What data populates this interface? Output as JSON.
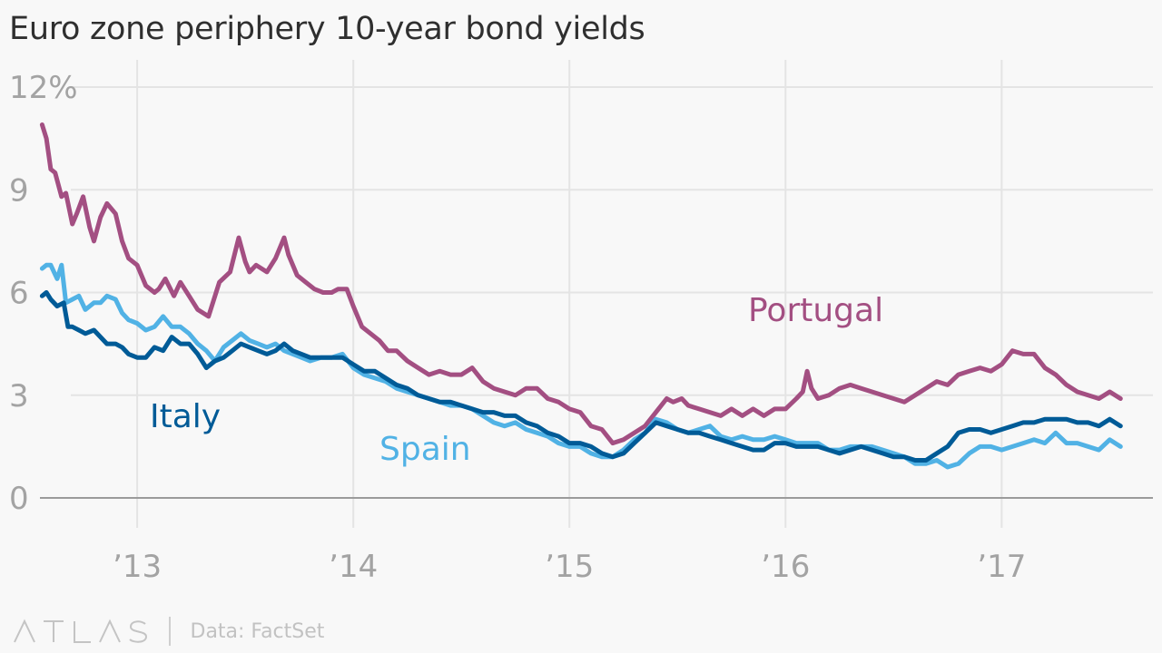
{
  "chart_data": {
    "type": "line",
    "title": "Euro zone periphery 10-year bond yields",
    "xlabel": "",
    "ylabel": "",
    "ylim": [
      0,
      12
    ],
    "yticks": [
      0,
      3,
      6,
      9,
      12
    ],
    "ytick_labels": [
      "0",
      "3",
      "6",
      "9",
      "12%"
    ],
    "xlim": [
      2012.55,
      2017.7
    ],
    "xticks": [
      2013,
      2014,
      2015,
      2016,
      2017
    ],
    "xtick_labels": [
      "’13",
      "’14",
      "’15",
      "’16",
      "’17"
    ],
    "grid": true,
    "series": [
      {
        "name": "Portugal",
        "label": "Portugal",
        "color": "#a34f82",
        "x": [
          2012.56,
          2012.58,
          2012.6,
          2012.62,
          2012.65,
          2012.67,
          2012.7,
          2012.72,
          2012.75,
          2012.78,
          2012.8,
          2012.83,
          2012.86,
          2012.9,
          2012.93,
          2012.96,
          2013.0,
          2013.04,
          2013.08,
          2013.1,
          2013.13,
          2013.17,
          2013.2,
          2013.24,
          2013.28,
          2013.33,
          2013.38,
          2013.43,
          2013.47,
          2013.5,
          2013.52,
          2013.55,
          2013.6,
          2013.64,
          2013.68,
          2013.7,
          2013.74,
          2013.78,
          2013.82,
          2013.86,
          2013.9,
          2013.93,
          2013.97,
          2014.0,
          2014.04,
          2014.08,
          2014.12,
          2014.16,
          2014.2,
          2014.25,
          2014.3,
          2014.35,
          2014.4,
          2014.45,
          2014.5,
          2014.55,
          2014.6,
          2014.65,
          2014.7,
          2014.75,
          2014.8,
          2014.85,
          2014.9,
          2014.95,
          2015.0,
          2015.05,
          2015.1,
          2015.15,
          2015.2,
          2015.25,
          2015.3,
          2015.35,
          2015.4,
          2015.45,
          2015.48,
          2015.52,
          2015.55,
          2015.6,
          2015.65,
          2015.7,
          2015.75,
          2015.8,
          2015.85,
          2015.9,
          2015.95,
          2016.0,
          2016.05,
          2016.08,
          2016.1,
          2016.12,
          2016.15,
          2016.2,
          2016.25,
          2016.3,
          2016.35,
          2016.4,
          2016.45,
          2016.5,
          2016.55,
          2016.6,
          2016.65,
          2016.7,
          2016.75,
          2016.8,
          2016.85,
          2016.9,
          2016.95,
          2017.0,
          2017.05,
          2017.1,
          2017.15,
          2017.2,
          2017.25,
          2017.3,
          2017.35,
          2017.4,
          2017.45,
          2017.5,
          2017.55
        ],
        "values": [
          10.9,
          10.5,
          9.6,
          9.5,
          8.8,
          8.9,
          8.0,
          8.3,
          8.8,
          7.9,
          7.5,
          8.2,
          8.6,
          8.3,
          7.5,
          7.0,
          6.8,
          6.2,
          6.0,
          6.1,
          6.4,
          5.9,
          6.3,
          5.9,
          5.5,
          5.3,
          6.3,
          6.6,
          7.6,
          6.9,
          6.6,
          6.8,
          6.6,
          7.0,
          7.6,
          7.1,
          6.5,
          6.3,
          6.1,
          6.0,
          6.0,
          6.1,
          6.1,
          5.6,
          5.0,
          4.8,
          4.6,
          4.3,
          4.3,
          4.0,
          3.8,
          3.6,
          3.7,
          3.6,
          3.6,
          3.8,
          3.4,
          3.2,
          3.1,
          3.0,
          3.2,
          3.2,
          2.9,
          2.8,
          2.6,
          2.5,
          2.1,
          2.0,
          1.6,
          1.7,
          1.9,
          2.1,
          2.5,
          2.9,
          2.8,
          2.9,
          2.7,
          2.6,
          2.5,
          2.4,
          2.6,
          2.4,
          2.6,
          2.4,
          2.6,
          2.6,
          2.9,
          3.1,
          3.7,
          3.2,
          2.9,
          3.0,
          3.2,
          3.3,
          3.2,
          3.1,
          3.0,
          2.9,
          2.8,
          3.0,
          3.2,
          3.4,
          3.3,
          3.6,
          3.7,
          3.8,
          3.7,
          3.9,
          4.3,
          4.2,
          4.2,
          3.8,
          3.6,
          3.3,
          3.1,
          3.0,
          2.9,
          3.1,
          2.9
        ]
      },
      {
        "name": "Spain",
        "label": "Spain",
        "color": "#51b2e5",
        "x": [
          2012.56,
          2012.58,
          2012.6,
          2012.63,
          2012.65,
          2012.67,
          2012.7,
          2012.73,
          2012.76,
          2012.8,
          2012.83,
          2012.86,
          2012.9,
          2012.93,
          2012.96,
          2013.0,
          2013.04,
          2013.08,
          2013.12,
          2013.16,
          2013.2,
          2013.24,
          2013.28,
          2013.32,
          2013.36,
          2013.4,
          2013.44,
          2013.48,
          2013.52,
          2013.56,
          2013.6,
          2013.64,
          2013.68,
          2013.72,
          2013.76,
          2013.8,
          2013.85,
          2013.9,
          2013.95,
          2014.0,
          2014.05,
          2014.1,
          2014.15,
          2014.2,
          2014.25,
          2014.3,
          2014.35,
          2014.4,
          2014.45,
          2014.5,
          2014.55,
          2014.6,
          2014.65,
          2014.7,
          2014.75,
          2014.8,
          2014.85,
          2014.9,
          2014.95,
          2015.0,
          2015.05,
          2015.1,
          2015.15,
          2015.2,
          2015.25,
          2015.3,
          2015.35,
          2015.4,
          2015.45,
          2015.5,
          2015.55,
          2015.6,
          2015.65,
          2015.7,
          2015.75,
          2015.8,
          2015.85,
          2015.9,
          2015.95,
          2016.0,
          2016.05,
          2016.1,
          2016.15,
          2016.2,
          2016.25,
          2016.3,
          2016.35,
          2016.4,
          2016.45,
          2016.5,
          2016.55,
          2016.6,
          2016.65,
          2016.7,
          2016.75,
          2016.8,
          2016.85,
          2016.9,
          2016.95,
          2017.0,
          2017.05,
          2017.1,
          2017.15,
          2017.2,
          2017.25,
          2017.3,
          2017.35,
          2017.4,
          2017.45,
          2017.5,
          2017.55
        ],
        "values": [
          6.7,
          6.8,
          6.8,
          6.4,
          6.8,
          5.7,
          5.8,
          5.9,
          5.5,
          5.7,
          5.7,
          5.9,
          5.8,
          5.4,
          5.2,
          5.1,
          4.9,
          5.0,
          5.3,
          5.0,
          5.0,
          4.8,
          4.5,
          4.3,
          4.0,
          4.4,
          4.6,
          4.8,
          4.6,
          4.5,
          4.4,
          4.5,
          4.3,
          4.2,
          4.1,
          4.0,
          4.1,
          4.1,
          4.2,
          3.8,
          3.6,
          3.5,
          3.4,
          3.2,
          3.1,
          3.0,
          2.9,
          2.8,
          2.7,
          2.7,
          2.6,
          2.4,
          2.2,
          2.1,
          2.2,
          2.0,
          1.9,
          1.8,
          1.6,
          1.5,
          1.5,
          1.3,
          1.2,
          1.2,
          1.4,
          1.7,
          1.9,
          2.3,
          2.2,
          2.0,
          1.9,
          2.0,
          2.1,
          1.8,
          1.7,
          1.8,
          1.7,
          1.7,
          1.8,
          1.7,
          1.6,
          1.6,
          1.6,
          1.4,
          1.4,
          1.5,
          1.5,
          1.5,
          1.4,
          1.3,
          1.2,
          1.0,
          1.0,
          1.1,
          0.9,
          1.0,
          1.3,
          1.5,
          1.5,
          1.4,
          1.5,
          1.6,
          1.7,
          1.6,
          1.9,
          1.6,
          1.6,
          1.5,
          1.4,
          1.7,
          1.5
        ]
      },
      {
        "name": "Italy",
        "label": "Italy",
        "color": "#005b97",
        "x": [
          2012.56,
          2012.58,
          2012.6,
          2012.63,
          2012.66,
          2012.68,
          2012.7,
          2012.73,
          2012.76,
          2012.8,
          2012.83,
          2012.86,
          2012.9,
          2012.93,
          2012.96,
          2013.0,
          2013.04,
          2013.08,
          2013.12,
          2013.16,
          2013.2,
          2013.24,
          2013.28,
          2013.32,
          2013.36,
          2013.4,
          2013.44,
          2013.48,
          2013.52,
          2013.56,
          2013.6,
          2013.64,
          2013.68,
          2013.72,
          2013.76,
          2013.8,
          2013.85,
          2013.9,
          2013.95,
          2014.0,
          2014.05,
          2014.1,
          2014.15,
          2014.2,
          2014.25,
          2014.3,
          2014.35,
          2014.4,
          2014.45,
          2014.5,
          2014.55,
          2014.6,
          2014.65,
          2014.7,
          2014.75,
          2014.8,
          2014.85,
          2014.9,
          2014.95,
          2015.0,
          2015.05,
          2015.1,
          2015.15,
          2015.2,
          2015.25,
          2015.3,
          2015.35,
          2015.4,
          2015.45,
          2015.5,
          2015.55,
          2015.6,
          2015.65,
          2015.7,
          2015.75,
          2015.8,
          2015.85,
          2015.9,
          2015.95,
          2016.0,
          2016.05,
          2016.1,
          2016.15,
          2016.2,
          2016.25,
          2016.3,
          2016.35,
          2016.4,
          2016.45,
          2016.5,
          2016.55,
          2016.6,
          2016.65,
          2016.7,
          2016.75,
          2016.8,
          2016.85,
          2016.9,
          2016.95,
          2017.0,
          2017.05,
          2017.1,
          2017.15,
          2017.2,
          2017.25,
          2017.3,
          2017.35,
          2017.4,
          2017.45,
          2017.5,
          2017.55
        ],
        "values": [
          5.9,
          6.0,
          5.8,
          5.6,
          5.7,
          5.0,
          5.0,
          4.9,
          4.8,
          4.9,
          4.7,
          4.5,
          4.5,
          4.4,
          4.2,
          4.1,
          4.1,
          4.4,
          4.3,
          4.7,
          4.5,
          4.5,
          4.2,
          3.8,
          4.0,
          4.1,
          4.3,
          4.5,
          4.4,
          4.3,
          4.2,
          4.3,
          4.5,
          4.3,
          4.2,
          4.1,
          4.1,
          4.1,
          4.1,
          3.9,
          3.7,
          3.7,
          3.5,
          3.3,
          3.2,
          3.0,
          2.9,
          2.8,
          2.8,
          2.7,
          2.6,
          2.5,
          2.5,
          2.4,
          2.4,
          2.2,
          2.1,
          1.9,
          1.8,
          1.6,
          1.6,
          1.5,
          1.3,
          1.2,
          1.3,
          1.6,
          1.9,
          2.2,
          2.1,
          2.0,
          1.9,
          1.9,
          1.8,
          1.7,
          1.6,
          1.5,
          1.4,
          1.4,
          1.6,
          1.6,
          1.5,
          1.5,
          1.5,
          1.4,
          1.3,
          1.4,
          1.5,
          1.4,
          1.3,
          1.2,
          1.2,
          1.1,
          1.1,
          1.3,
          1.5,
          1.9,
          2.0,
          2.0,
          1.9,
          2.0,
          2.1,
          2.2,
          2.2,
          2.3,
          2.3,
          2.3,
          2.2,
          2.2,
          2.1,
          2.3,
          2.1
        ]
      }
    ]
  },
  "footer": {
    "brand": "ATLAS",
    "source": "Data: FactSet"
  }
}
